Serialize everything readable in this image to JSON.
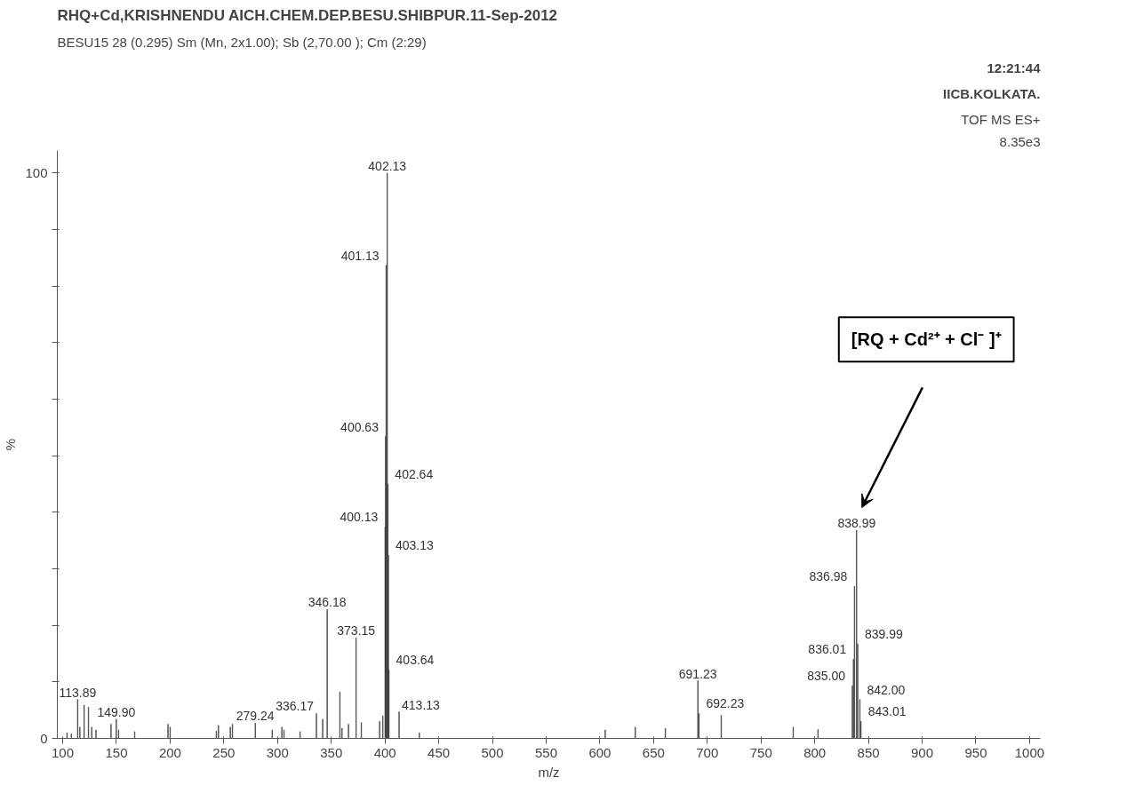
{
  "chart_data": {
    "type": "bar",
    "title": "RHQ+Cd,KRISHNENDU AICH.CHEM.DEP.BESU.SHIBPUR.11-Sep-2012",
    "subtitle": "BESU15  28 (0.295) Sm (Mn, 2x1.00); Sb (2,70.00 ); Cm (2:29)",
    "xlabel": "m/z",
    "ylabel": "%",
    "x": [
      104,
      108,
      113.89,
      116,
      120,
      124,
      127,
      131,
      145,
      149.9,
      152,
      167,
      198,
      200,
      243,
      245,
      256,
      258,
      279.24,
      295,
      304,
      306,
      321,
      336.17,
      342,
      346.18,
      358,
      360,
      366,
      373.15,
      378,
      395,
      398,
      400.13,
      400.63,
      401.13,
      402.13,
      402.64,
      403.13,
      403.64,
      413.13,
      432,
      605,
      633,
      661,
      691.23,
      692.23,
      713,
      780,
      803,
      835.0,
      836.01,
      836.98,
      838.99,
      839.99,
      842.0,
      843.01
    ],
    "values": [
      1.0,
      0.8,
      6.9,
      2.0,
      5.9,
      5.5,
      2.0,
      1.5,
      2.5,
      3.4,
      1.5,
      1.2,
      2.5,
      2.0,
      1.3,
      2.3,
      2.0,
      2.5,
      2.7,
      1.5,
      2.0,
      1.5,
      1.2,
      4.4,
      3.4,
      22.8,
      8.2,
      1.8,
      2.5,
      17.8,
      2.8,
      3.0,
      4.0,
      37.4,
      53.4,
      83.7,
      100,
      45.0,
      32.4,
      12.1,
      4.7,
      1.0,
      1.5,
      2.0,
      1.8,
      10.2,
      4.4,
      4.1,
      2.0,
      1.6,
      9.3,
      14.0,
      26.9,
      36.8,
      16.7,
      6.9,
      3.0
    ],
    "color": "#3a3a3a",
    "xlim": [
      95,
      1010
    ],
    "ylim": [
      0,
      104
    ],
    "xticks": [
      100,
      150,
      200,
      250,
      300,
      350,
      400,
      450,
      500,
      550,
      600,
      650,
      700,
      750,
      800,
      850,
      900,
      950,
      1000
    ],
    "yticks": [
      0,
      {
        "value": 10,
        "label": null
      },
      {
        "value": 20,
        "label": null
      },
      {
        "value": 30,
        "label": null
      },
      {
        "value": 40,
        "label": null
      },
      {
        "value": 50,
        "label": null
      },
      {
        "value": 60,
        "label": null
      },
      {
        "value": 70,
        "label": null
      },
      {
        "value": 80,
        "label": null
      },
      {
        "value": 90,
        "label": null
      },
      100
    ],
    "annotations": [
      "12:21:44",
      "IICB.KOLKATA.",
      "TOF MS ES+",
      "8.35e3",
      {
        "text": "113.89",
        "x": 113.89,
        "y": 6.9
      },
      {
        "text": "149.90",
        "x": 149.9,
        "y": 3.4
      },
      {
        "text": "279.24",
        "x": 279.24,
        "y": 2.7
      },
      {
        "text": "336.17",
        "x": 336.17,
        "y": 4.4
      },
      {
        "text": "346.18",
        "x": 346.18,
        "y": 22.8
      },
      {
        "text": "373.15",
        "x": 373.15,
        "y": 17.8
      },
      {
        "text": "400.13",
        "x": 400.13,
        "y": 37.4
      },
      {
        "text": "400.63",
        "x": 400.63,
        "y": 53.4
      },
      {
        "text": "401.13",
        "x": 401.13,
        "y": 83.7
      },
      {
        "text": "402.13",
        "x": 402.13,
        "y": 100
      },
      {
        "text": "402.64",
        "x": 402.64,
        "y": 45.0
      },
      {
        "text": "403.13",
        "x": 403.13,
        "y": 32.4
      },
      {
        "text": "403.64",
        "x": 403.64,
        "y": 12.1
      },
      {
        "text": "413.13",
        "x": 413.13,
        "y": 4.7
      },
      {
        "text": "691.23",
        "x": 691.23,
        "y": 10.2
      },
      {
        "text": "692.23",
        "x": 692.23,
        "y": 4.4
      },
      {
        "text": "835.00",
        "x": 835.0,
        "y": 9.3
      },
      {
        "text": "836.01",
        "x": 836.01,
        "y": 14.0
      },
      {
        "text": "836.98",
        "x": 836.98,
        "y": 26.9
      },
      {
        "text": "839.99",
        "x": 839.99,
        "y": 16.7
      },
      {
        "text": "842.00",
        "x": 842.0,
        "y": 6.9
      },
      {
        "text": "843.01",
        "x": 843.01,
        "y": 3.0
      },
      {
        "text": "838.99",
        "x": 838.99,
        "y": 36.8
      },
      "[RQ + Cd²⁺ + Cl⁻ ]⁺"
    ]
  }
}
